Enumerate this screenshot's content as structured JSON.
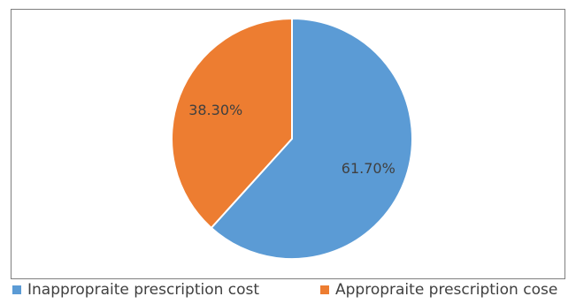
{
  "chart_data": {
    "type": "pie",
    "title": "",
    "slices": [
      {
        "label": "Inappropraite prescription cost",
        "value": 61.7,
        "display": "61.70%",
        "color": "#5b9bd5"
      },
      {
        "label": "Appropraite prescription cose",
        "value": 38.3,
        "display": "38.30%",
        "color": "#ed7d31"
      }
    ],
    "legend_position": "bottom",
    "start_angle_deg": 0,
    "direction": "clockwise"
  },
  "legend": {
    "items": [
      {
        "label": "Inappropraite prescription cost",
        "color": "#5b9bd5"
      },
      {
        "label": "Appropraite prescription cose",
        "color": "#ed7d31"
      }
    ]
  }
}
